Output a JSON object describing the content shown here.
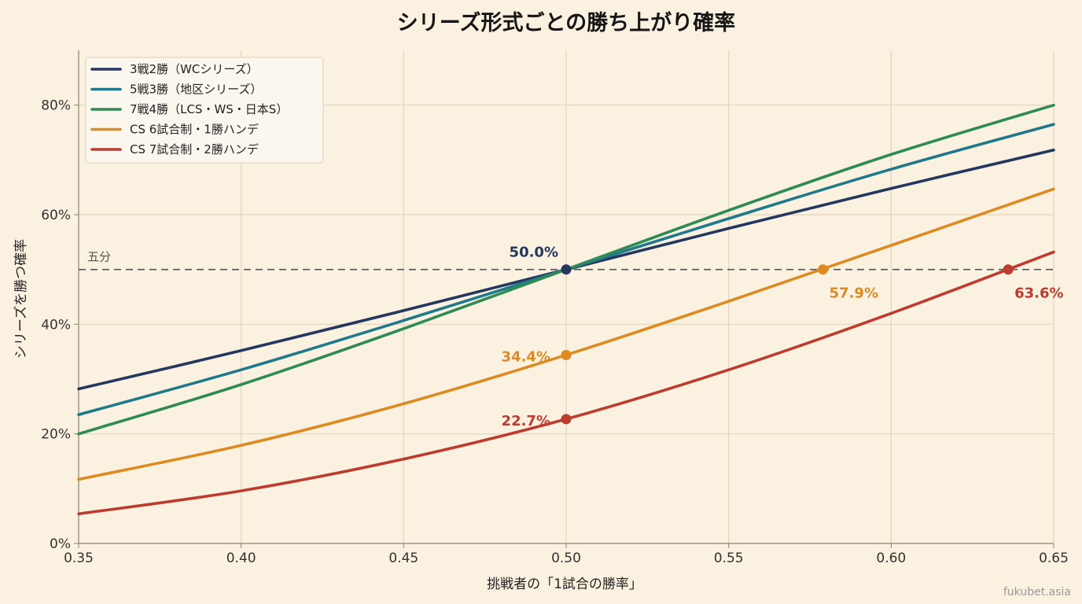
{
  "chart_data": {
    "type": "line",
    "title": "シリーズ形式ごとの勝ち上がり確率",
    "xlabel": "挑戦者の「1試合の勝率」",
    "ylabel": "シリーズを勝つ確率",
    "xlim": [
      0.35,
      0.65
    ],
    "ylim": [
      0,
      0.9
    ],
    "x_ticks": [
      0.35,
      0.4,
      0.45,
      0.5,
      0.55,
      0.6,
      0.65
    ],
    "x_tick_labels": [
      "0.35",
      "0.40",
      "0.45",
      "0.50",
      "0.55",
      "0.60",
      "0.65"
    ],
    "y_ticks": [
      0,
      0.2,
      0.4,
      0.6,
      0.8
    ],
    "y_tick_labels": [
      "0%",
      "20%",
      "40%",
      "60%",
      "80%"
    ],
    "grid": true,
    "legend_position": "top-left",
    "series": [
      {
        "name": "3戦2勝（WCシリーズ）",
        "color": "#23375f",
        "x": [
          0.35,
          0.4,
          0.45,
          0.5,
          0.55,
          0.6,
          0.65
        ],
        "y": [
          0.282,
          0.352,
          0.425,
          0.5,
          0.575,
          0.648,
          0.718
        ]
      },
      {
        "name": "5戦3勝（地区シリーズ）",
        "color": "#20798a",
        "x": [
          0.35,
          0.4,
          0.45,
          0.5,
          0.55,
          0.6,
          0.65
        ],
        "y": [
          0.235,
          0.317,
          0.407,
          0.5,
          0.593,
          0.683,
          0.765
        ]
      },
      {
        "name": "7戦4勝（LCS・WS・日本S）",
        "color": "#2f8a55",
        "x": [
          0.35,
          0.4,
          0.45,
          0.5,
          0.55,
          0.6,
          0.65
        ],
        "y": [
          0.2,
          0.29,
          0.392,
          0.5,
          0.608,
          0.71,
          0.8
        ]
      },
      {
        "name": "CS 6試合制・1勝ハンデ",
        "color": "#dd8a22",
        "x": [
          0.35,
          0.4,
          0.45,
          0.5,
          0.55,
          0.6,
          0.65
        ],
        "y": [
          0.117,
          0.179,
          0.255,
          0.344,
          0.442,
          0.544,
          0.647
        ]
      },
      {
        "name": "CS 7試合制・2勝ハンデ",
        "color": "#bc3d30",
        "x": [
          0.35,
          0.4,
          0.45,
          0.5,
          0.55,
          0.6,
          0.65
        ],
        "y": [
          0.054,
          0.096,
          0.154,
          0.227,
          0.317,
          0.42,
          0.532
        ]
      }
    ],
    "reference_line": {
      "y": 0.5,
      "label": "五分",
      "color": "#555555"
    },
    "annotations": [
      {
        "x": 0.5,
        "y": 0.5,
        "text": "50.0%",
        "series": 0,
        "color": "#23375f"
      },
      {
        "x": 0.5,
        "y": 0.344,
        "text": "34.4%",
        "series": 3,
        "color": "#dd8a22"
      },
      {
        "x": 0.5,
        "y": 0.227,
        "text": "22.7%",
        "series": 4,
        "color": "#bc3d30"
      },
      {
        "x": 0.579,
        "y": 0.5,
        "text": "57.9%",
        "series": 3,
        "color": "#dd8a22"
      },
      {
        "x": 0.636,
        "y": 0.5,
        "text": "63.6%",
        "series": 4,
        "color": "#bc3d30"
      }
    ],
    "watermark": "fukubet.asia"
  }
}
